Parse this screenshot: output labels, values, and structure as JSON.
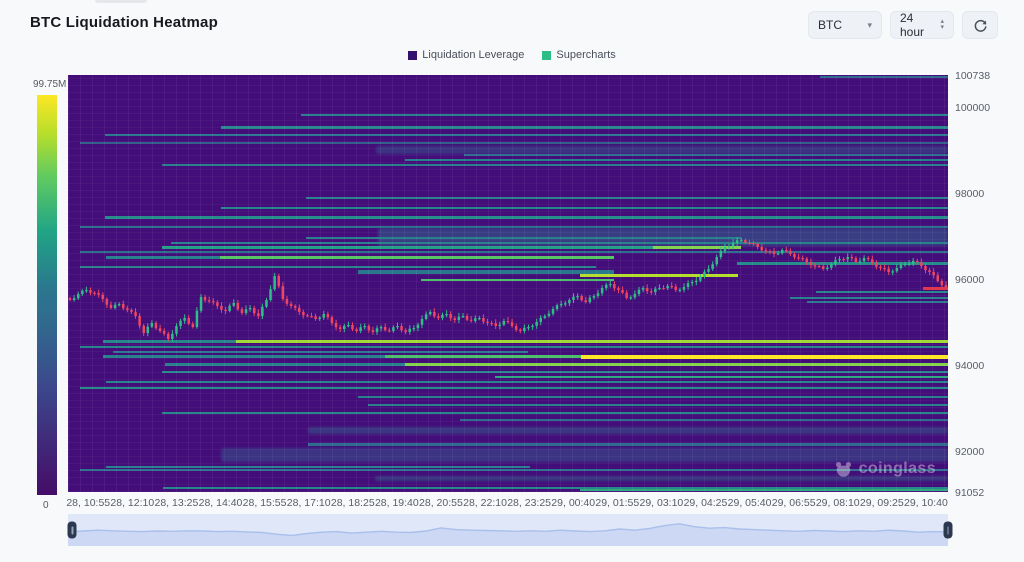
{
  "page": {
    "title": "BTC Liquidation Heatmap"
  },
  "controls": {
    "symbol": {
      "value": "BTC"
    },
    "interval": {
      "value": "24 hour"
    }
  },
  "legend": {
    "items": [
      {
        "label": "Liquidation Leverage",
        "color": "#33116e"
      },
      {
        "label": "Supercharts",
        "color": "#2ebd85"
      }
    ]
  },
  "watermark": {
    "text": "coinglass"
  },
  "chart_data": {
    "type": "heatmap",
    "title": "BTC Liquidation Heatmap",
    "colorbar": {
      "max_label": "99.75M",
      "min_label": "0",
      "colormap": "viridis"
    },
    "y_axis": {
      "min": 91052,
      "max": 100738,
      "tick_labels": [
        100738,
        100000,
        98000,
        96000,
        94000,
        92000,
        91052
      ]
    },
    "x_axis": {
      "tick_labels": [
        "28, 10:55",
        "28, 12:10",
        "28, 13:25",
        "28, 14:40",
        "28, 15:55",
        "28, 17:10",
        "28, 18:25",
        "28, 19:40",
        "28, 20:55",
        "28, 22:10",
        "28, 23:25",
        "29, 00:40",
        "29, 01:55",
        "29, 03:10",
        "29, 04:25",
        "29, 05:40",
        "29, 06:55",
        "29, 08:10",
        "29, 09:25",
        "29, 10:40"
      ]
    },
    "heatmap_background": "#440e7a",
    "liquidation_lines": [
      [
        100694,
        0.855,
        1,
        0.5,
        2,
        0
      ],
      [
        99810,
        0.265,
        1,
        0.58,
        2,
        0
      ],
      [
        99508,
        0.174,
        1,
        0.6,
        3,
        0
      ],
      [
        99345,
        0.042,
        1,
        0.55,
        2,
        0
      ],
      [
        99160,
        0.014,
        1,
        0.45,
        2,
        0
      ],
      [
        99000,
        0.35,
        1,
        0.42,
        8,
        1
      ],
      [
        98880,
        0.45,
        1,
        0.5,
        2,
        0
      ],
      [
        98765,
        0.383,
        1,
        0.58,
        2,
        0
      ],
      [
        98650,
        0.107,
        1,
        0.58,
        2,
        0
      ],
      [
        97880,
        0.27,
        1,
        0.58,
        2,
        0
      ],
      [
        97650,
        0.174,
        1,
        0.6,
        2,
        0
      ],
      [
        97417,
        0.042,
        1,
        0.62,
        3,
        0
      ],
      [
        97210,
        0.014,
        1,
        0.52,
        2,
        0
      ],
      [
        96980,
        0.352,
        1,
        0.5,
        18,
        1
      ],
      [
        96952,
        0.27,
        0.765,
        0.58,
        2,
        0
      ],
      [
        96836,
        0.117,
        1,
        0.58,
        2,
        0
      ],
      [
        96720,
        0.107,
        0.665,
        0.68,
        3,
        0
      ],
      [
        96720,
        0.665,
        0.765,
        0.85,
        3,
        0
      ],
      [
        96627,
        0.014,
        1,
        0.52,
        2,
        0
      ],
      [
        96488,
        0.043,
        0.173,
        0.58,
        3,
        0
      ],
      [
        96488,
        0.173,
        0.62,
        0.8,
        3,
        0
      ],
      [
        96348,
        0.76,
        1,
        0.62,
        3,
        0
      ],
      [
        96278,
        0.014,
        0.6,
        0.58,
        2,
        0
      ],
      [
        96162,
        0.33,
        0.62,
        0.55,
        4,
        0
      ],
      [
        96092,
        0.582,
        0.761,
        0.9,
        3,
        0
      ],
      [
        95976,
        0.401,
        0.62,
        0.78,
        2,
        0
      ],
      [
        95700,
        0.85,
        1,
        0.6,
        2,
        0
      ],
      [
        95560,
        0.82,
        1,
        0.58,
        2,
        0
      ],
      [
        95470,
        0.84,
        1,
        0.55,
        2,
        0
      ],
      [
        94537,
        0.04,
        0.191,
        0.6,
        3,
        0
      ],
      [
        94537,
        0.191,
        1,
        0.88,
        3,
        0
      ],
      [
        94421,
        0.014,
        1,
        0.6,
        2,
        0
      ],
      [
        94305,
        0.051,
        0.523,
        0.55,
        2,
        0
      ],
      [
        94188,
        0.04,
        0.36,
        0.58,
        3,
        0
      ],
      [
        94188,
        0.36,
        0.583,
        0.78,
        3,
        0
      ],
      [
        94188,
        0.583,
        1,
        1,
        4,
        0
      ],
      [
        94002,
        0.11,
        0.383,
        0.58,
        3,
        0
      ],
      [
        94002,
        0.383,
        1,
        0.85,
        3,
        0
      ],
      [
        93840,
        0.107,
        1,
        0.6,
        2,
        0
      ],
      [
        93723,
        0.485,
        1,
        0.72,
        2,
        0
      ],
      [
        93607,
        0.043,
        1,
        0.6,
        2,
        0
      ],
      [
        93468,
        0.014,
        1,
        0.62,
        2,
        0
      ],
      [
        93259,
        0.33,
        1,
        0.58,
        2,
        0
      ],
      [
        93073,
        0.341,
        1,
        0.58,
        2,
        0
      ],
      [
        92887,
        0.107,
        1,
        0.6,
        2,
        0
      ],
      [
        92725,
        0.445,
        1,
        0.5,
        2,
        0
      ],
      [
        92492,
        0.273,
        1,
        0.45,
        7,
        1
      ],
      [
        92144,
        0.273,
        1,
        0.5,
        3,
        0
      ],
      [
        91911,
        0.174,
        1,
        0.42,
        14,
        1
      ],
      [
        91632,
        0.043,
        0.525,
        0.58,
        2,
        0
      ],
      [
        91563,
        0.014,
        1,
        0.52,
        2,
        0
      ],
      [
        91377,
        0.349,
        1,
        0.45,
        5,
        1
      ],
      [
        91145,
        0.108,
        1,
        0.6,
        2,
        0
      ],
      [
        91098,
        0.582,
        1,
        0.72,
        2,
        0
      ]
    ],
    "last_price_line": {
      "price": 95790,
      "x0": 0.972,
      "color": "#e0384e"
    },
    "price_series": {
      "up_color": "#2fbe87",
      "down_color": "#ef4560",
      "points": [
        [
          0.005,
          95512
        ],
        [
          0.019,
          95650
        ],
        [
          0.031,
          95744
        ],
        [
          0.042,
          95674
        ],
        [
          0.053,
          95535
        ],
        [
          0.065,
          95326
        ],
        [
          0.076,
          95419
        ],
        [
          0.088,
          95280
        ],
        [
          0.099,
          95141
        ],
        [
          0.107,
          94746
        ],
        [
          0.116,
          94978
        ],
        [
          0.125,
          94792
        ],
        [
          0.133,
          94606
        ],
        [
          0.144,
          94908
        ],
        [
          0.156,
          95094
        ],
        [
          0.167,
          94885
        ],
        [
          0.175,
          95582
        ],
        [
          0.186,
          95489
        ],
        [
          0.198,
          95373
        ],
        [
          0.209,
          95257
        ],
        [
          0.22,
          95442
        ],
        [
          0.232,
          95210
        ],
        [
          0.243,
          95326
        ],
        [
          0.255,
          95141
        ],
        [
          0.261,
          95512
        ],
        [
          0.267,
          96069
        ],
        [
          0.273,
          95535
        ],
        [
          0.282,
          95373
        ],
        [
          0.291,
          95233
        ],
        [
          0.3,
          95141
        ],
        [
          0.309,
          95071
        ],
        [
          0.318,
          95187
        ],
        [
          0.327,
          94978
        ],
        [
          0.336,
          94838
        ],
        [
          0.345,
          94931
        ],
        [
          0.355,
          94792
        ],
        [
          0.364,
          94908
        ],
        [
          0.373,
          94769
        ],
        [
          0.382,
          94885
        ],
        [
          0.391,
          94792
        ],
        [
          0.4,
          94908
        ],
        [
          0.409,
          94769
        ],
        [
          0.418,
          94861
        ],
        [
          0.427,
          95071
        ],
        [
          0.436,
          95233
        ],
        [
          0.445,
          95094
        ],
        [
          0.455,
          95187
        ],
        [
          0.464,
          95048
        ],
        [
          0.473,
          95141
        ],
        [
          0.482,
          95025
        ],
        [
          0.491,
          95094
        ],
        [
          0.5,
          94978
        ],
        [
          0.509,
          94908
        ],
        [
          0.518,
          95025
        ],
        [
          0.527,
          94908
        ],
        [
          0.536,
          94792
        ],
        [
          0.545,
          94885
        ],
        [
          0.555,
          95001
        ],
        [
          0.564,
          95141
        ],
        [
          0.573,
          95303
        ],
        [
          0.582,
          95419
        ],
        [
          0.591,
          95512
        ],
        [
          0.6,
          95605
        ],
        [
          0.609,
          95466
        ],
        [
          0.618,
          95605
        ],
        [
          0.627,
          95791
        ],
        [
          0.636,
          95884
        ],
        [
          0.645,
          95744
        ],
        [
          0.655,
          95558
        ],
        [
          0.664,
          95651
        ],
        [
          0.673,
          95791
        ],
        [
          0.682,
          95698
        ],
        [
          0.691,
          95791
        ],
        [
          0.7,
          95837
        ],
        [
          0.709,
          95744
        ],
        [
          0.718,
          95814
        ],
        [
          0.727,
          95930
        ],
        [
          0.736,
          96046
        ],
        [
          0.745,
          96232
        ],
        [
          0.755,
          96511
        ],
        [
          0.764,
          96743
        ],
        [
          0.773,
          96836
        ],
        [
          0.782,
          96906
        ],
        [
          0.791,
          96836
        ],
        [
          0.8,
          96743
        ],
        [
          0.809,
          96650
        ],
        [
          0.818,
          96580
        ],
        [
          0.825,
          96673
        ],
        [
          0.834,
          96580
        ],
        [
          0.843,
          96487
        ],
        [
          0.852,
          96394
        ],
        [
          0.861,
          96302
        ],
        [
          0.87,
          96232
        ],
        [
          0.88,
          96348
        ],
        [
          0.889,
          96464
        ],
        [
          0.898,
          96511
        ],
        [
          0.907,
          96394
        ],
        [
          0.916,
          96487
        ],
        [
          0.925,
          96371
        ],
        [
          0.934,
          96255
        ],
        [
          0.943,
          96162
        ],
        [
          0.952,
          96255
        ],
        [
          0.961,
          96348
        ],
        [
          0.97,
          96418
        ],
        [
          0.98,
          96302
        ],
        [
          0.989,
          96162
        ],
        [
          0.995,
          95953
        ],
        [
          1,
          95814
        ]
      ]
    },
    "navigator": {
      "values": [
        0.42,
        0.45,
        0.48,
        0.46,
        0.44,
        0.43,
        0.45,
        0.44,
        0.46,
        0.45,
        0.43,
        0.44,
        0.42,
        0.4,
        0.34,
        0.3,
        0.36,
        0.41,
        0.43,
        0.38,
        0.41,
        0.44,
        0.41,
        0.4,
        0.45,
        0.56,
        0.5,
        0.48,
        0.47,
        0.46,
        0.44,
        0.46,
        0.44,
        0.48,
        0.45,
        0.43,
        0.46,
        0.52,
        0.48,
        0.54,
        0.64,
        0.7,
        0.6,
        0.55,
        0.57,
        0.52,
        0.5,
        0.48,
        0.46,
        0.44,
        0.47,
        0.45,
        0.43,
        0.46,
        0.44,
        0.48,
        0.45,
        0.41,
        0.43,
        0.42
      ]
    }
  }
}
